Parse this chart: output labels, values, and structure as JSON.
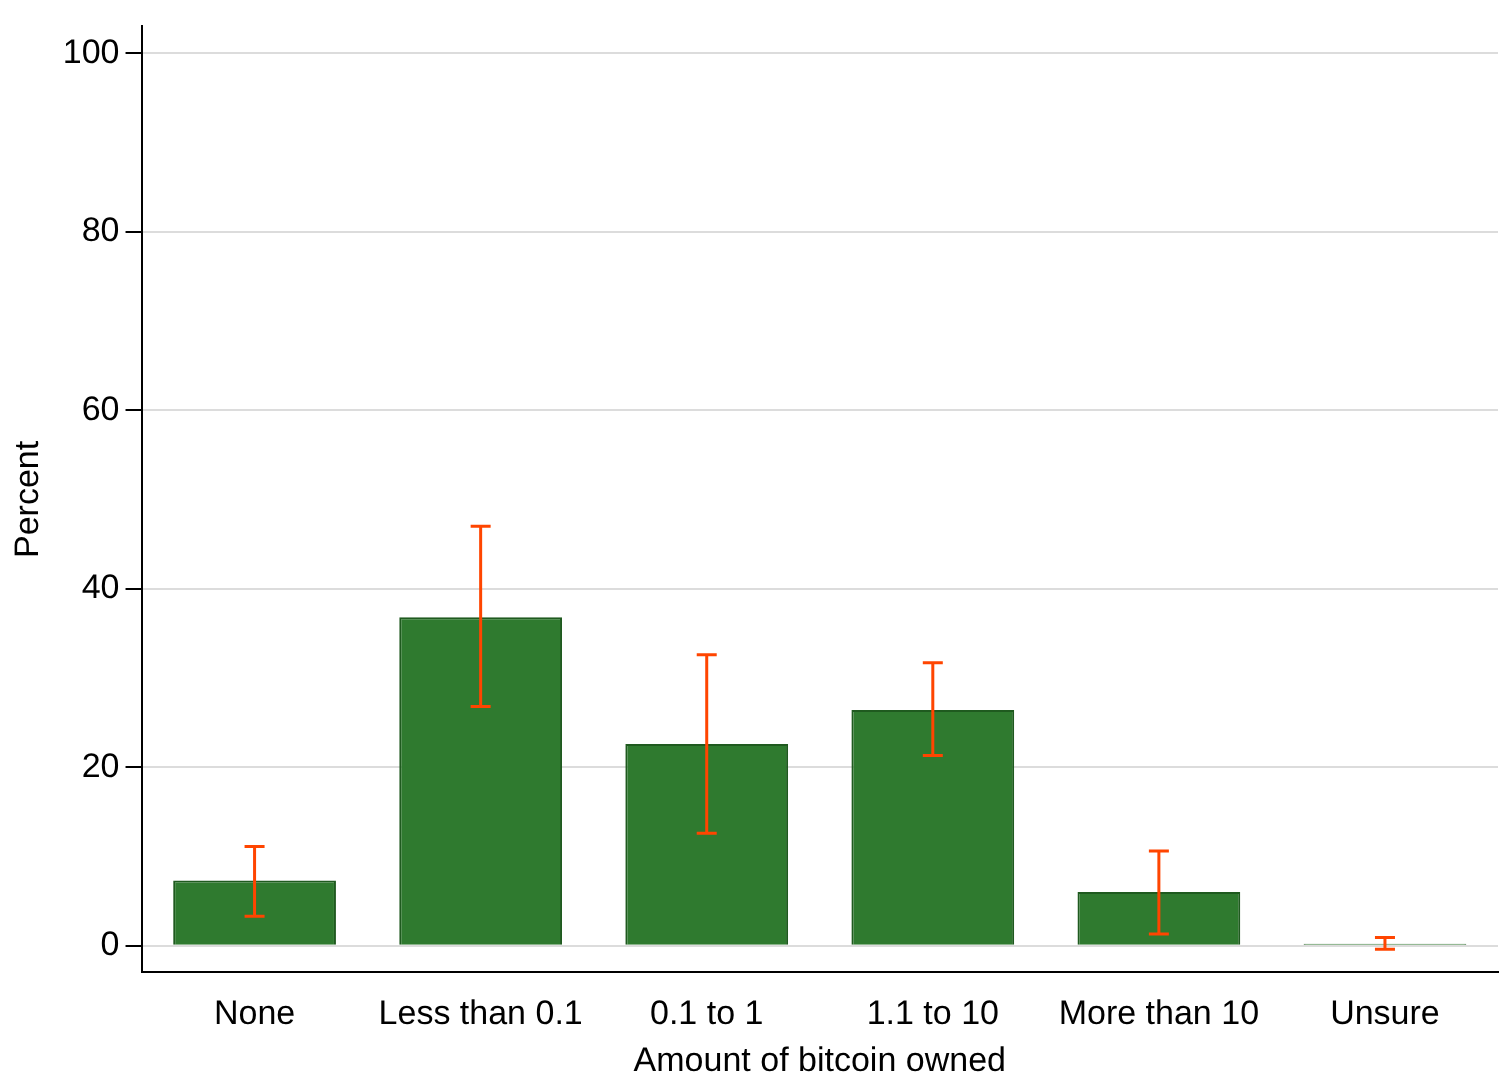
{
  "chart_data": {
    "type": "bar",
    "xlabel": "Amount of bitcoin owned",
    "ylabel": "Percent",
    "categories": [
      "None",
      "Less than 0.1",
      "0.1 to 1",
      "1.1 to 10",
      "More than 10",
      "Unsure"
    ],
    "values": [
      7.3,
      36.8,
      22.6,
      26.4,
      6.0,
      0.2
    ],
    "errors": [
      [
        3.3,
        11.1
      ],
      [
        26.8,
        47.0
      ],
      [
        12.6,
        32.6
      ],
      [
        21.3,
        31.7
      ],
      [
        1.3,
        10.6
      ],
      [
        -0.4,
        0.9
      ]
    ],
    "color": "#2f7a2f",
    "ylim": [
      -3,
      103
    ],
    "yticks": [
      0,
      20,
      40,
      60,
      80,
      100
    ],
    "grid": "y",
    "legend": false
  }
}
